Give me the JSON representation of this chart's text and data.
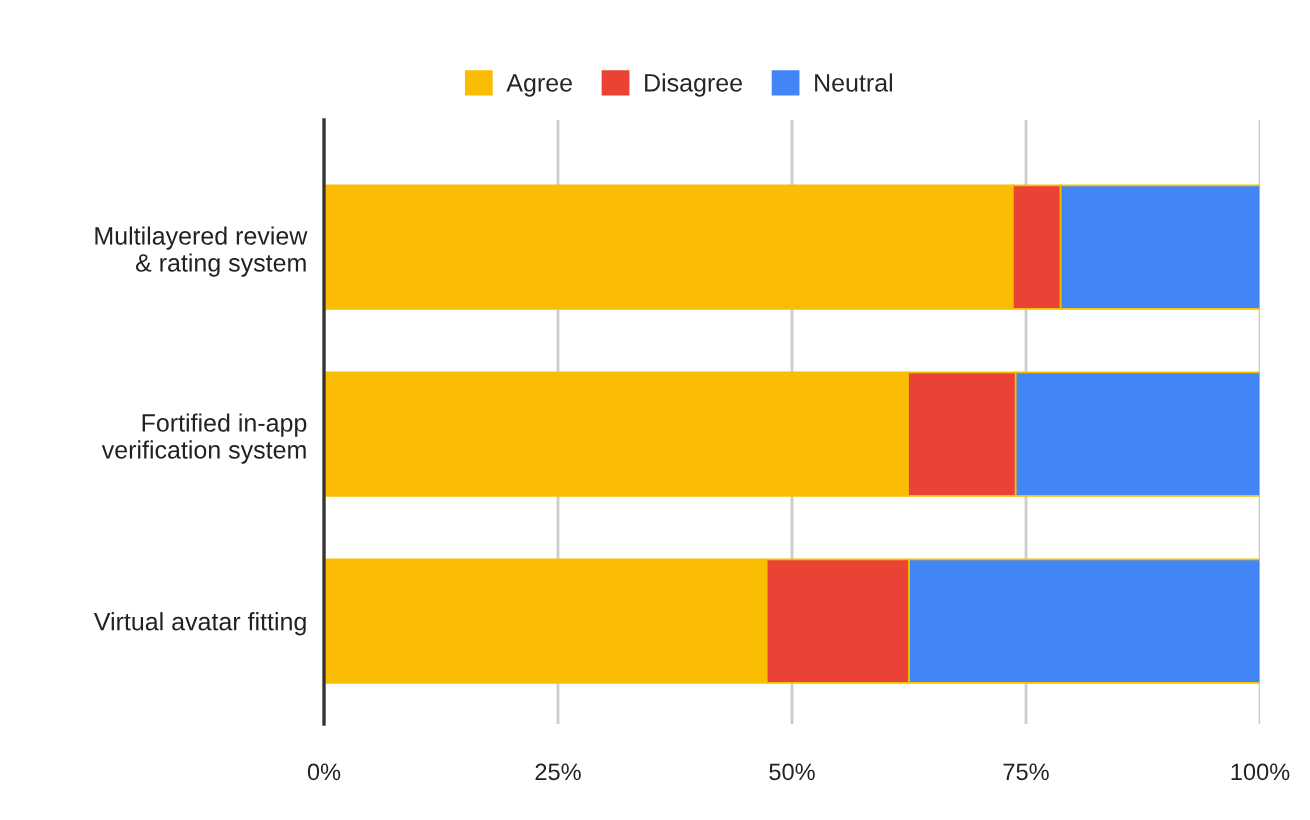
{
  "chart_data": {
    "type": "bar",
    "orientation": "horizontal",
    "stacked": true,
    "categories": [
      "Multilayered review\n& rating system",
      "Fortified in-app\nverification system",
      "Virtual avatar fitting"
    ],
    "series": [
      {
        "name": "Agree",
        "color": "#fbbc04",
        "values": [
          73.6,
          62.4,
          47.3
        ]
      },
      {
        "name": "Disagree",
        "color": "#ea4335",
        "values": [
          5.1,
          11.5,
          15.2
        ]
      },
      {
        "name": "Neutral",
        "color": "#4285f4",
        "values": [
          21.3,
          26.1,
          37.5
        ]
      }
    ],
    "xlim": [
      0,
      100
    ],
    "xticks": [
      {
        "value": 0,
        "label": "0%"
      },
      {
        "value": 25,
        "label": "25%"
      },
      {
        "value": 50,
        "label": "50%"
      },
      {
        "value": 75,
        "label": "75%"
      },
      {
        "value": 100,
        "label": "100%"
      }
    ],
    "grid": "x",
    "legend": "top"
  }
}
